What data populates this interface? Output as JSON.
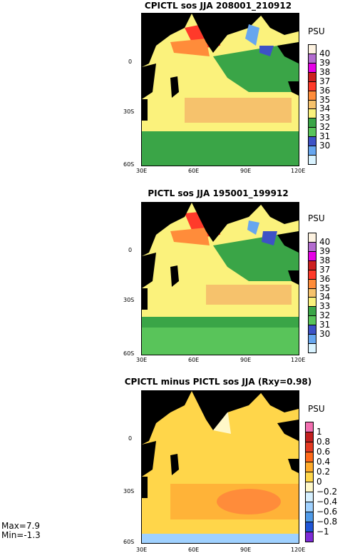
{
  "chart_data": [
    {
      "type": "heatmap",
      "title": "CPICTL sos JJA 208001_210912",
      "units": "PSU",
      "x_ticks": [
        "30E",
        "60E",
        "90E",
        "120E"
      ],
      "y_ticks": [
        "0",
        "30S",
        "60S"
      ],
      "xlim": [
        30,
        120
      ],
      "ylim": [
        -60,
        25
      ],
      "colorbar": {
        "labels": [
          "40",
          "39",
          "38",
          "37",
          "36",
          "35",
          "34",
          "33",
          "32",
          "31",
          "30"
        ],
        "colors": [
          "#fdf2e0",
          "#b36ccf",
          "#e600e6",
          "#cc2020",
          "#ff3a2a",
          "#ff8c3a",
          "#f6c26c",
          "#fbf27c",
          "#3aa547",
          "#59c45a",
          "#3d52c6",
          "#66a6ef",
          "#d9f3ff"
        ]
      }
    },
    {
      "type": "heatmap",
      "title": "PICTL sos JJA 195001_199912",
      "units": "PSU",
      "x_ticks": [
        "30E",
        "60E",
        "90E",
        "120E"
      ],
      "y_ticks": [
        "0",
        "30S",
        "60S"
      ],
      "xlim": [
        30,
        120
      ],
      "ylim": [
        -60,
        25
      ],
      "colorbar": {
        "labels": [
          "40",
          "39",
          "38",
          "37",
          "36",
          "35",
          "34",
          "33",
          "32",
          "31",
          "30"
        ],
        "colors": [
          "#fdf2e0",
          "#b36ccf",
          "#e600e6",
          "#cc2020",
          "#ff3a2a",
          "#ff8c3a",
          "#f6c26c",
          "#fbf27c",
          "#3aa547",
          "#59c45a",
          "#3d52c6",
          "#66a6ef",
          "#d9f3ff"
        ]
      }
    },
    {
      "type": "heatmap",
      "title": "CPICTL minus PICTL sos JJA (Rxy=0.98)",
      "units": "PSU",
      "x_ticks": [
        "30E",
        "60E",
        "90E",
        "120E"
      ],
      "y_ticks": [
        "0",
        "30S",
        "60S"
      ],
      "xlim": [
        30,
        120
      ],
      "ylim": [
        -60,
        25
      ],
      "colorbar": {
        "labels": [
          "1",
          "0.8",
          "0.6",
          "0.4",
          "0.2",
          "0",
          "−0.2",
          "−0.4",
          "−0.6",
          "−0.8",
          "−1"
        ],
        "colors": [
          "#f26fb0",
          "#c21f1f",
          "#e43a22",
          "#ff6a1a",
          "#ffab2a",
          "#ffd64a",
          "#fff8c9",
          "#d6f0ff",
          "#9fd1ff",
          "#4f9ae8",
          "#1f55d6",
          "#7d2bd6"
        ]
      },
      "stats": {
        "max": "Max=7.9",
        "min": "Min=-1.3"
      }
    }
  ],
  "colors": {
    "land": "#000000",
    "ocean_fresh_green": "#3aa547",
    "ocean_mid_yellow": "#fbf27c",
    "diff_orange": "#ffb338",
    "diff_yellow": "#ffd64a"
  }
}
